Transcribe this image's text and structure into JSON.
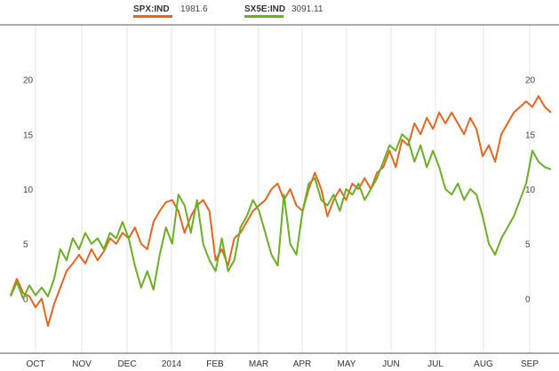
{
  "chart_data": {
    "type": "line",
    "title": "",
    "xlabel": "",
    "ylabel": "",
    "ylim": [
      -5,
      25
    ],
    "grid": true,
    "legend": "top-center",
    "x_ticks": [
      "OCT",
      "NOV",
      "DEC",
      "2014",
      "FEB",
      "MAR",
      "APR",
      "MAY",
      "JUN",
      "JUL",
      "AUG",
      "SEP"
    ],
    "y_ticks_left": [
      "20",
      "15",
      "10",
      "5",
      "0"
    ],
    "y_ticks_right": [
      "20",
      "15",
      "10",
      "5",
      "0"
    ],
    "series": [
      {
        "name": "SPX:IND",
        "last_value": "1981.6",
        "color": "#e8661c",
        "values": [
          0.3,
          1.8,
          0.5,
          0.2,
          -0.8,
          0.0,
          -2.5,
          -0.5,
          1.0,
          2.5,
          3.2,
          4.0,
          3.2,
          4.5,
          3.5,
          4.3,
          5.5,
          5.0,
          6.0,
          5.5,
          6.5,
          5.0,
          4.5,
          7.0,
          8.0,
          8.8,
          9.0,
          8.0,
          6.0,
          7.5,
          8.5,
          9.0,
          8.0,
          3.5,
          4.5,
          3.0,
          5.5,
          6.0,
          7.0,
          8.0,
          8.5,
          9.0,
          10.0,
          10.5,
          9.0,
          10.0,
          8.5,
          8.0,
          10.0,
          11.5,
          10.0,
          7.5,
          9.0,
          10.0,
          9.0,
          10.5,
          10.0,
          11.0,
          10.0,
          11.5,
          12.0,
          13.5,
          12.0,
          14.5,
          14.0,
          16.0,
          15.0,
          16.5,
          15.5,
          17.0,
          16.0,
          17.0,
          16.0,
          15.0,
          16.5,
          15.5,
          13.0,
          14.0,
          12.5,
          15.0,
          16.0,
          17.0,
          17.5,
          18.0,
          17.5,
          18.5,
          17.5,
          17.0
        ]
      },
      {
        "name": "SX5E:IND",
        "last_value": "3091.11",
        "color": "#6ab023",
        "values": [
          0.2,
          1.5,
          0.0,
          1.2,
          0.3,
          1.0,
          0.2,
          1.8,
          4.5,
          3.5,
          5.5,
          4.5,
          6.0,
          5.0,
          5.5,
          4.5,
          6.0,
          5.5,
          7.0,
          5.5,
          3.0,
          1.0,
          2.5,
          0.8,
          4.0,
          6.5,
          5.0,
          9.5,
          8.5,
          6.0,
          9.0,
          5.0,
          3.5,
          2.5,
          5.5,
          2.5,
          3.5,
          6.5,
          7.5,
          9.0,
          8.0,
          6.0,
          4.0,
          3.0,
          9.5,
          5.0,
          4.0,
          8.0,
          10.5,
          11.0,
          9.0,
          8.5,
          9.5,
          8.0,
          10.0,
          9.5,
          10.5,
          9.0,
          10.0,
          11.0,
          12.5,
          14.0,
          13.5,
          15.0,
          14.5,
          12.5,
          14.0,
          12.0,
          13.5,
          12.0,
          10.0,
          9.5,
          10.5,
          9.0,
          10.0,
          9.5,
          7.5,
          5.0,
          4.0,
          5.5,
          6.5,
          7.5,
          9.0,
          10.5,
          13.5,
          12.5,
          12.0,
          11.8
        ]
      }
    ]
  }
}
